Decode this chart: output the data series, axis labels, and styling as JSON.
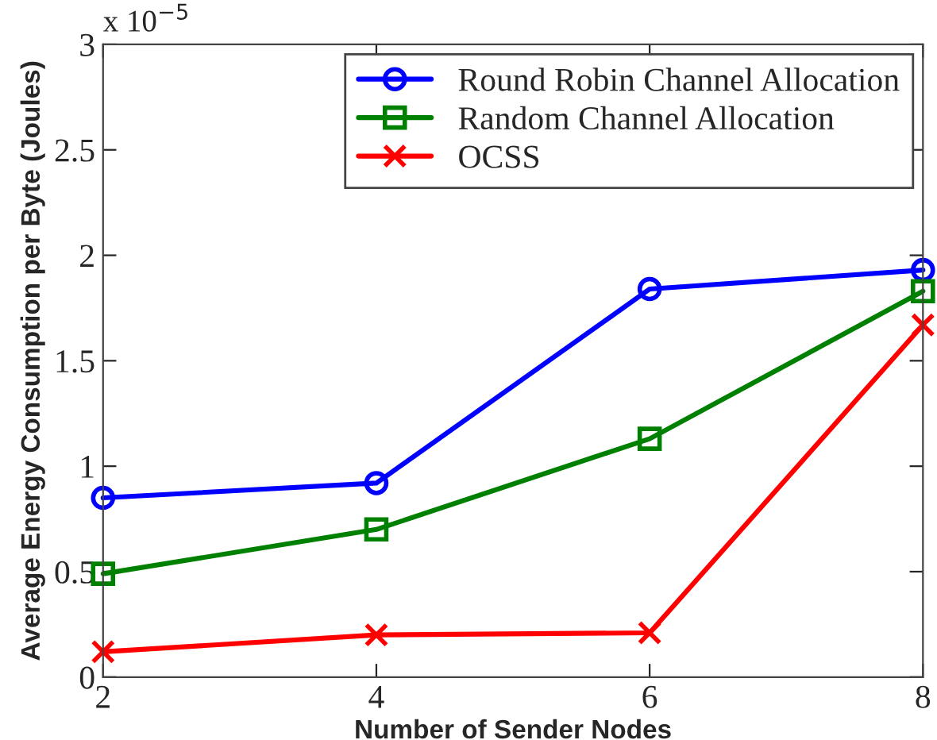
{
  "chart_data": {
    "type": "line",
    "xlabel": "Number of Sender Nodes",
    "ylabel": "Average Energy Consumption per Byte (Joules)",
    "annotations": [
      "x 10$^{−5}$"
    ],
    "x": [
      2,
      4,
      6,
      8
    ],
    "series": [
      {
        "name": "Round Robin Channel Allocation",
        "color": "#0000ff",
        "marker": "circle",
        "values": [
          0.85,
          0.92,
          1.84,
          1.93
        ]
      },
      {
        "name": "Random Channel Allocation",
        "color": "#008000",
        "marker": "square",
        "values": [
          0.49,
          0.7,
          1.13,
          1.83
        ]
      },
      {
        "name": "OCSS",
        "color": "#ff0000",
        "marker": "cross",
        "values": [
          0.12,
          0.2,
          0.21,
          1.67
        ]
      }
    ],
    "xlim": [
      2,
      8
    ],
    "xticks": [
      2,
      4,
      6,
      8
    ],
    "ylim": [
      0,
      3
    ],
    "yticks": [
      0,
      0.5,
      1,
      1.5,
      2,
      2.5,
      3
    ],
    "grid": false,
    "legend": "top right",
    "line_style": "solid"
  }
}
